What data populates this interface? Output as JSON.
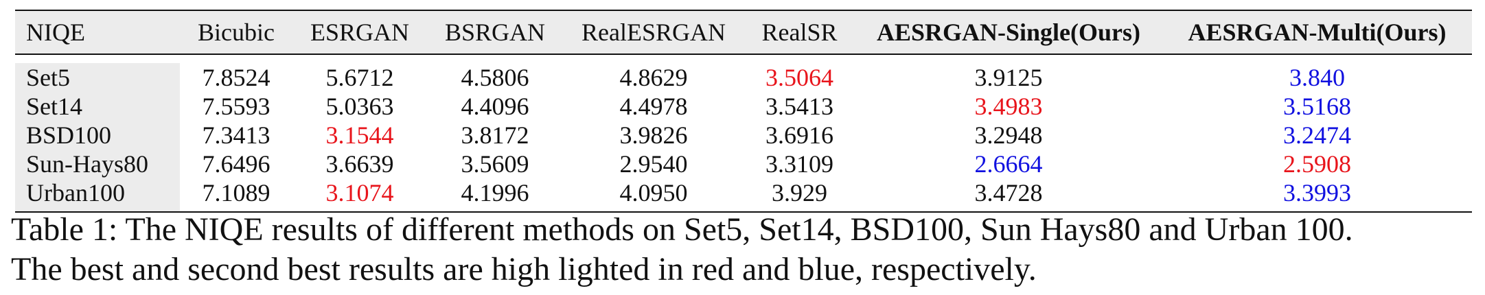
{
  "table": {
    "headers": [
      "NIQE",
      "Bicubic",
      "ESRGAN",
      "BSRGAN",
      "RealESRGAN",
      "RealSR",
      "AESRGAN-Single(Ours)",
      "AESRGAN-Multi(Ours)"
    ],
    "rows": [
      {
        "name": "Set5",
        "cells": [
          {
            "v": "7.8524",
            "c": ""
          },
          {
            "v": "5.6712",
            "c": ""
          },
          {
            "v": "4.5806",
            "c": ""
          },
          {
            "v": "4.8629",
            "c": ""
          },
          {
            "v": "3.5064",
            "c": "red"
          },
          {
            "v": "3.9125",
            "c": ""
          },
          {
            "v": "3.840",
            "c": "blue"
          }
        ]
      },
      {
        "name": "Set14",
        "cells": [
          {
            "v": "7.5593",
            "c": ""
          },
          {
            "v": "5.0363",
            "c": ""
          },
          {
            "v": "4.4096",
            "c": ""
          },
          {
            "v": "4.4978",
            "c": ""
          },
          {
            "v": "3.5413",
            "c": ""
          },
          {
            "v": "3.4983",
            "c": "red"
          },
          {
            "v": "3.5168",
            "c": "blue"
          }
        ]
      },
      {
        "name": "BSD100",
        "cells": [
          {
            "v": "7.3413",
            "c": ""
          },
          {
            "v": "3.1544",
            "c": "red"
          },
          {
            "v": "3.8172",
            "c": ""
          },
          {
            "v": "3.9826",
            "c": ""
          },
          {
            "v": "3.6916",
            "c": ""
          },
          {
            "v": "3.2948",
            "c": ""
          },
          {
            "v": "3.2474",
            "c": "blue"
          }
        ]
      },
      {
        "name": "Sun-Hays80",
        "cells": [
          {
            "v": "7.6496",
            "c": ""
          },
          {
            "v": "3.6639",
            "c": ""
          },
          {
            "v": "3.5609",
            "c": ""
          },
          {
            "v": "2.9540",
            "c": ""
          },
          {
            "v": "3.3109",
            "c": ""
          },
          {
            "v": "2.6664",
            "c": "blue"
          },
          {
            "v": "2.5908",
            "c": "red"
          }
        ]
      },
      {
        "name": "Urban100",
        "cells": [
          {
            "v": "7.1089",
            "c": ""
          },
          {
            "v": "3.1074",
            "c": "red"
          },
          {
            "v": "4.1996",
            "c": ""
          },
          {
            "v": "4.0950",
            "c": ""
          },
          {
            "v": "3.929",
            "c": ""
          },
          {
            "v": "3.4728",
            "c": ""
          },
          {
            "v": "3.3993",
            "c": "blue"
          }
        ]
      }
    ]
  },
  "caption": {
    "line1": "Table 1: The NIQE results of different methods on Set5, Set14, BSD100, Sun Hays80 and Urban 100.",
    "line2": "The best and second best results are high lighted in red and blue, respectively."
  },
  "colors": {
    "best": "#e8141b",
    "second_best": "#1010e0",
    "shade": "#ececec"
  }
}
